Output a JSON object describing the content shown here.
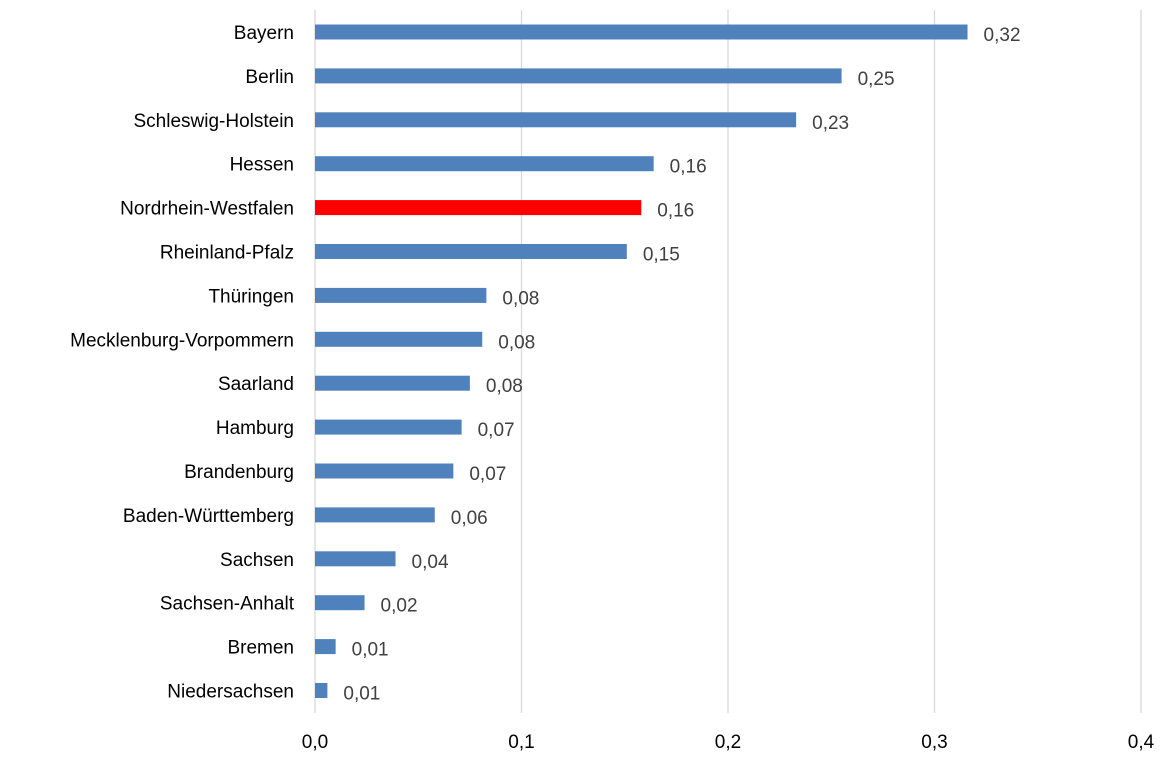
{
  "chart_data": {
    "type": "bar",
    "orientation": "horizontal",
    "categories": [
      "Bayern",
      "Berlin",
      "Schleswig-Holstein",
      "Hessen",
      "Nordrhein-Westfalen",
      "Rheinland-Pfalz",
      "Thüringen",
      "Mecklenburg-Vorpommern",
      "Saarland",
      "Hamburg",
      "Brandenburg",
      "Baden-Württemberg",
      "Sachsen",
      "Sachsen-Anhalt",
      "Bremen",
      "Niedersachsen"
    ],
    "values": [
      0.316,
      0.255,
      0.233,
      0.164,
      0.158,
      0.151,
      0.083,
      0.081,
      0.075,
      0.071,
      0.067,
      0.058,
      0.039,
      0.024,
      0.01,
      0.006
    ],
    "value_labels": [
      "0,32",
      "0,25",
      "0,23",
      "0,16",
      "0,16",
      "0,15",
      "0,08",
      "0,08",
      "0,08",
      "0,07",
      "0,07",
      "0,06",
      "0,04",
      "0,02",
      "0,01",
      "0,01"
    ],
    "xlim": [
      0,
      0.4
    ],
    "x_ticks": [
      0,
      0.1,
      0.2,
      0.3,
      0.4
    ],
    "x_tick_labels": [
      "0,0",
      "0,1",
      "0,2",
      "0,3",
      "0,4"
    ],
    "grid": "vertical",
    "legend": "none",
    "colors": {
      "default": "#4F81BD",
      "highlight": "#FF0000",
      "grid": "#D9D9D9"
    },
    "highlight_category": "Nordrhein-Westfalen"
  }
}
